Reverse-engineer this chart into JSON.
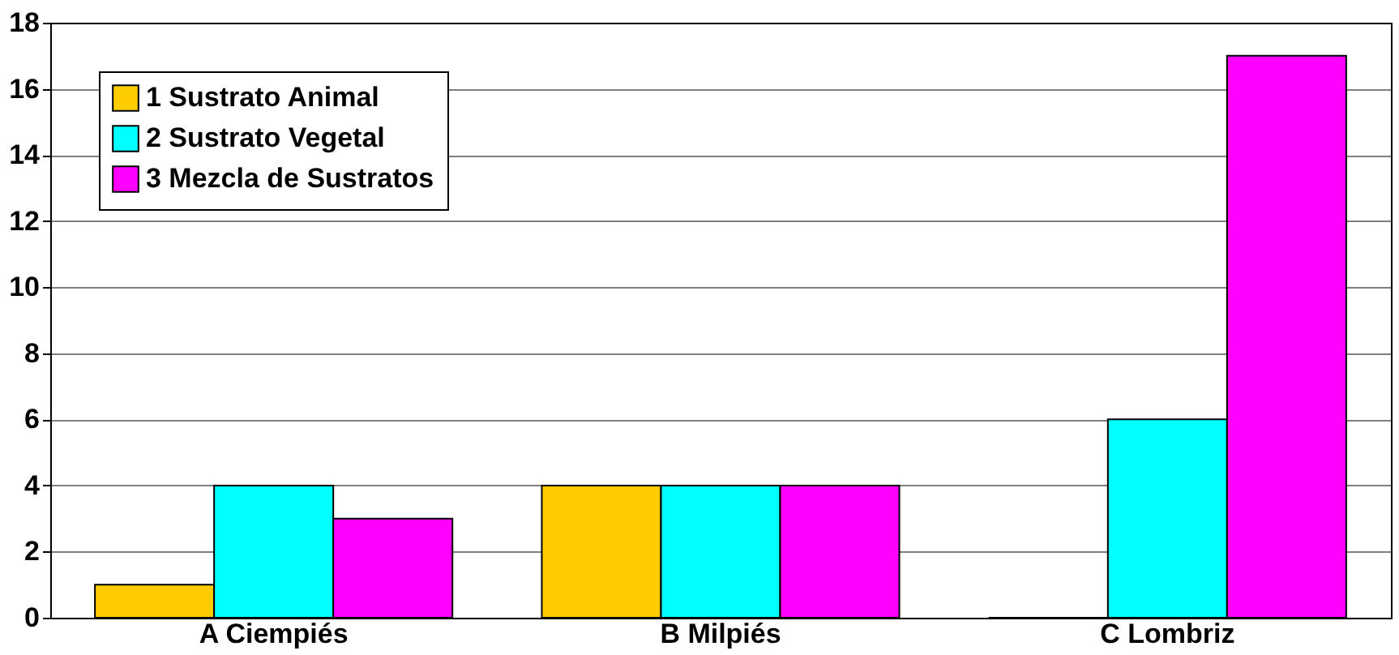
{
  "chart_data": {
    "type": "bar",
    "categories": [
      "A Ciempiés",
      "B Milpiés",
      "C Lombriz"
    ],
    "series": [
      {
        "name": "1 Sustrato Animal",
        "color": "#ffcc00",
        "values": [
          1,
          4,
          0
        ]
      },
      {
        "name": "2 Sustrato Vegetal",
        "color": "#00ffff",
        "values": [
          4,
          4,
          6
        ]
      },
      {
        "name": "3 Mezcla de Sustratos",
        "color": "#ff00ff",
        "values": [
          3,
          4,
          17
        ]
      }
    ],
    "ylim": [
      0,
      18
    ],
    "yticks": [
      0,
      2,
      4,
      6,
      8,
      10,
      12,
      14,
      16,
      18
    ],
    "grid": "y",
    "legend": "top left"
  }
}
